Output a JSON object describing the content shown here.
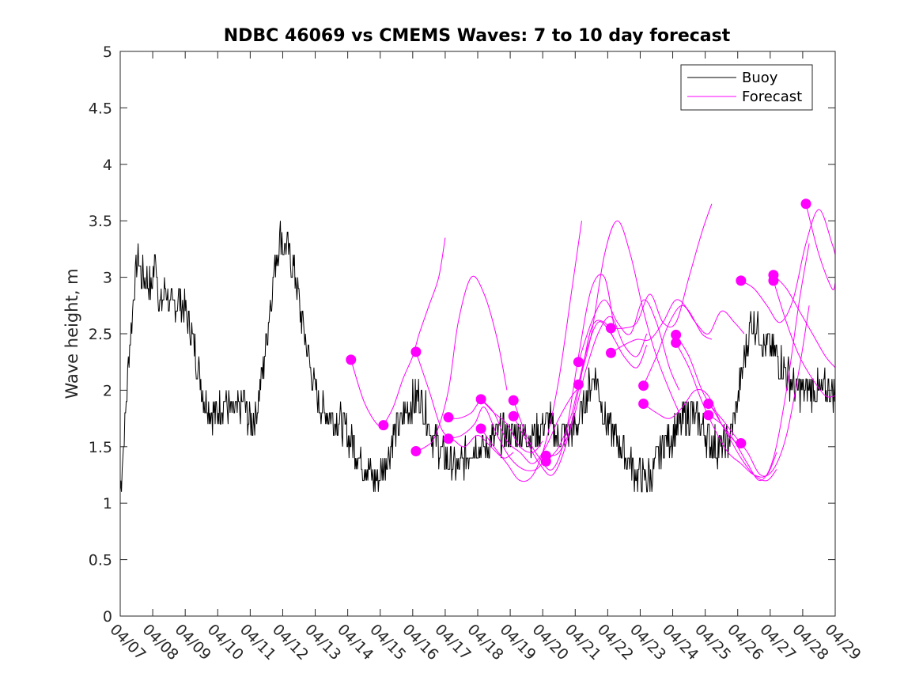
{
  "chart_data": {
    "type": "line",
    "title": "NDBC 46069 vs CMEMS Waves: 7 to 10 day forecast",
    "xlabel": "",
    "ylabel": "Wave height, m",
    "xlim": [
      "2024-04-07",
      "2024-04-29"
    ],
    "ylim": [
      0,
      5
    ],
    "yticks": [
      "0",
      "0.5",
      "1",
      "1.5",
      "2",
      "2.5",
      "3",
      "3.5",
      "4",
      "4.5",
      "5"
    ],
    "xticks": [
      "04/07",
      "04/08",
      "04/09",
      "04/10",
      "04/11",
      "04/12",
      "04/13",
      "04/14",
      "04/15",
      "04/16",
      "04/17",
      "04/18",
      "04/19",
      "04/20",
      "04/21",
      "04/22",
      "04/23",
      "04/24",
      "04/25",
      "04/26",
      "04/27",
      "04/28",
      "04/29"
    ],
    "grid": false,
    "legend": {
      "position": "top-right",
      "entries": [
        "Buoy",
        "Forecast"
      ]
    },
    "colors": {
      "buoy": "#000000",
      "forecast": "#ff00ff"
    },
    "series": [
      {
        "name": "Buoy",
        "x_days_from_0407": [
          0,
          0.1,
          0.25,
          0.4,
          0.55,
          0.65,
          0.8,
          0.95,
          1.1,
          1.2,
          1.4,
          1.55,
          1.8,
          2.0,
          2.2,
          2.4,
          2.6,
          2.8,
          3.0,
          3.2,
          3.4,
          3.6,
          3.8,
          4.0,
          4.2,
          4.4,
          4.6,
          4.8,
          4.95,
          5.0,
          5.2,
          5.4,
          5.6,
          5.8,
          6.0,
          6.2,
          6.4,
          6.6,
          6.8,
          7.0,
          7.2,
          7.4,
          7.6,
          7.8,
          8.0,
          8.2,
          8.4,
          8.6,
          8.8,
          9.0,
          9.2,
          9.4,
          9.6,
          9.8,
          10.0,
          10.2,
          10.4,
          10.6,
          10.8,
          11.0,
          11.2,
          11.4,
          11.6,
          11.8,
          12.0,
          12.2,
          12.4,
          12.6,
          12.8,
          13.0,
          13.2,
          13.4,
          13.6,
          13.8,
          14.0,
          14.2,
          14.4,
          14.6,
          14.8,
          15.0,
          15.2,
          15.4,
          15.6,
          15.8,
          16.0,
          16.2,
          16.4,
          16.6,
          16.8,
          17.0,
          17.2,
          17.4,
          17.6,
          17.8,
          18.0,
          18.2,
          18.4,
          18.6,
          18.8,
          19.0,
          19.2,
          19.4,
          19.6,
          19.8,
          20.0,
          20.2,
          20.4,
          20.6,
          20.8,
          21.0,
          21.2,
          21.4,
          21.6,
          21.8,
          22.0
        ],
        "values": [
          1.1,
          1.5,
          2.2,
          2.8,
          3.2,
          3.0,
          3.0,
          2.9,
          3.2,
          2.7,
          2.9,
          2.7,
          2.8,
          2.7,
          2.5,
          2.2,
          1.9,
          1.8,
          1.8,
          1.9,
          1.8,
          1.8,
          1.9,
          1.7,
          1.8,
          2.2,
          2.7,
          3.2,
          3.4,
          3.3,
          3.2,
          3.0,
          2.6,
          2.3,
          2.0,
          1.8,
          1.8,
          1.75,
          1.7,
          1.6,
          1.5,
          1.4,
          1.3,
          1.2,
          1.25,
          1.4,
          1.6,
          1.7,
          1.8,
          1.9,
          1.95,
          1.8,
          1.6,
          1.5,
          1.4,
          1.35,
          1.3,
          1.4,
          1.5,
          1.5,
          1.5,
          1.55,
          1.6,
          1.6,
          1.6,
          1.65,
          1.6,
          1.6,
          1.6,
          1.7,
          1.75,
          1.6,
          1.6,
          1.6,
          1.7,
          1.8,
          2.0,
          2.15,
          1.9,
          1.7,
          1.6,
          1.5,
          1.4,
          1.3,
          1.25,
          1.2,
          1.3,
          1.45,
          1.55,
          1.6,
          1.7,
          1.75,
          1.8,
          1.7,
          1.6,
          1.55,
          1.5,
          1.5,
          1.6,
          1.9,
          2.3,
          2.6,
          2.6,
          2.4,
          2.4,
          2.3,
          2.2,
          2.1,
          2.0,
          2.0,
          2.0,
          2.0,
          2.0,
          2.0,
          2.0
        ]
      },
      {
        "name": "Forecast",
        "runs": [
          {
            "x": [
              7.1,
              7.5,
              7.9,
              8.1
            ],
            "values": [
              2.27,
              1.9,
              1.7,
              1.7
            ]
          },
          {
            "x": [
              8.1,
              8.4,
              8.7,
              9.0,
              9.2,
              9.5,
              9.8,
              10.0
            ],
            "values": [
              1.69,
              1.85,
              2.1,
              2.3,
              2.5,
              2.75,
              3.0,
              3.35
            ]
          },
          {
            "x": [
              9.1,
              9.4,
              9.7,
              10.1,
              10.4,
              10.8,
              11.2,
              11.6,
              11.9
            ],
            "values": [
              1.46,
              1.5,
              1.6,
              2.0,
              2.6,
              3.0,
              2.85,
              2.45,
              2.0
            ]
          },
          {
            "x": [
              9.1,
              9.5,
              9.9,
              10.3,
              10.6,
              11.0,
              11.4,
              11.8,
              12.1
            ],
            "values": [
              2.34,
              2.0,
              1.65,
              1.55,
              1.5,
              1.6,
              1.5,
              1.4,
              1.45
            ]
          },
          {
            "x": [
              10.1,
              10.4,
              10.8,
              11.1,
              11.5,
              11.9,
              12.3,
              12.7,
              13.0
            ],
            "values": [
              1.76,
              1.75,
              1.8,
              1.9,
              1.8,
              1.7,
              1.5,
              1.45,
              1.55
            ]
          },
          {
            "x": [
              10.1,
              10.5,
              10.9,
              11.2,
              11.6,
              12.0,
              12.4,
              12.8,
              13.1
            ],
            "values": [
              1.57,
              1.6,
              1.7,
              1.85,
              1.6,
              1.4,
              1.3,
              1.3,
              1.4
            ]
          },
          {
            "x": [
              11.1,
              11.5,
              11.9,
              12.3,
              12.7,
              13.1,
              13.5,
              13.9,
              14.2
            ],
            "values": [
              1.92,
              1.8,
              1.55,
              1.45,
              1.35,
              1.5,
              1.75,
              1.95,
              2.05
            ]
          },
          {
            "x": [
              11.1,
              11.5,
              11.9,
              12.3,
              12.7,
              13.1,
              13.5,
              13.9,
              14.2
            ],
            "values": [
              1.66,
              1.5,
              1.35,
              1.2,
              1.25,
              1.55,
              2.1,
              2.9,
              3.5
            ]
          },
          {
            "x": [
              12.1,
              12.5,
              12.9,
              13.3,
              13.7,
              14.1,
              14.5,
              14.9,
              15.2
            ],
            "values": [
              1.91,
              1.6,
              1.4,
              1.3,
              1.6,
              2.3,
              2.9,
              3.0,
              2.55
            ]
          },
          {
            "x": [
              12.1,
              12.5,
              12.9,
              13.3,
              13.7,
              14.1,
              14.5,
              14.9,
              15.2
            ],
            "values": [
              1.77,
              1.55,
              1.35,
              1.25,
              1.5,
              2.0,
              2.55,
              2.6,
              2.45
            ]
          },
          {
            "x": [
              13.1,
              13.5,
              13.9,
              14.3,
              14.7,
              15.1,
              15.5,
              15.9,
              16.2
            ],
            "values": [
              1.42,
              1.45,
              1.7,
              2.15,
              2.5,
              2.65,
              2.4,
              2.3,
              2.5
            ]
          },
          {
            "x": [
              13.1,
              13.5,
              13.9,
              14.3,
              14.7,
              15.1,
              15.5,
              15.9,
              16.2
            ],
            "values": [
              1.37,
              1.5,
              1.8,
              2.3,
              2.6,
              2.5,
              2.3,
              2.2,
              2.4
            ]
          },
          {
            "x": [
              14.1,
              14.5,
              14.9,
              15.3,
              15.7,
              16.1,
              16.5,
              16.9,
              17.2
            ],
            "values": [
              2.25,
              2.6,
              2.8,
              2.6,
              2.5,
              2.8,
              2.6,
              2.2,
              2.0
            ]
          },
          {
            "x": [
              14.1,
              14.5,
              14.9,
              15.3,
              15.7,
              16.1,
              16.5,
              16.9,
              17.2
            ],
            "values": [
              2.05,
              2.5,
              3.2,
              3.5,
              3.2,
              2.7,
              2.3,
              2.0,
              1.8
            ]
          },
          {
            "x": [
              15.1,
              15.5,
              15.9,
              16.3,
              16.7,
              17.1,
              17.5,
              17.9,
              18.2
            ],
            "values": [
              2.55,
              2.55,
              2.6,
              2.85,
              2.6,
              2.6,
              3.0,
              3.4,
              3.65
            ]
          },
          {
            "x": [
              15.1,
              15.5,
              15.9,
              16.3,
              16.7,
              17.1,
              17.5,
              17.9,
              18.2
            ],
            "values": [
              2.33,
              2.4,
              2.45,
              2.45,
              2.6,
              2.8,
              2.7,
              2.5,
              2.45
            ]
          },
          {
            "x": [
              16.1,
              16.5,
              16.9,
              17.3,
              17.7,
              18.1,
              18.5,
              18.9,
              19.2
            ],
            "values": [
              2.04,
              2.3,
              2.6,
              2.75,
              2.6,
              2.5,
              2.7,
              2.6,
              2.5
            ]
          },
          {
            "x": [
              16.1,
              16.5,
              16.9,
              17.3,
              17.7,
              18.1,
              18.5,
              18.9,
              19.2
            ],
            "values": [
              1.88,
              1.8,
              1.75,
              1.85,
              2.0,
              1.95,
              1.7,
              1.55,
              1.5
            ]
          },
          {
            "x": [
              17.1,
              17.5,
              17.9,
              18.3,
              18.7,
              19.1,
              19.5,
              19.9,
              20.2
            ],
            "values": [
              2.49,
              2.3,
              2.0,
              1.8,
              1.6,
              1.4,
              1.25,
              1.2,
              1.3
            ]
          },
          {
            "x": [
              17.1,
              17.5,
              17.9,
              18.3,
              18.7,
              19.1,
              19.5,
              19.9,
              20.2
            ],
            "values": [
              2.42,
              2.2,
              1.9,
              1.65,
              1.45,
              1.35,
              1.25,
              1.25,
              1.45
            ]
          },
          {
            "x": [
              18.1,
              18.5,
              18.9,
              19.3,
              19.7,
              20.1,
              20.5,
              20.9,
              21.2
            ],
            "values": [
              1.88,
              1.75,
              1.6,
              1.45,
              1.25,
              1.3,
              1.6,
              2.2,
              2.75
            ]
          },
          {
            "x": [
              18.1,
              18.5,
              18.9,
              19.3,
              19.7,
              20.1,
              20.5,
              20.9,
              21.2
            ],
            "values": [
              1.78,
              1.7,
              1.55,
              1.35,
              1.2,
              1.4,
              2.0,
              2.8,
              3.3
            ]
          },
          {
            "x": [
              19.1,
              19.5,
              19.9,
              20.3,
              20.7,
              21.1,
              21.5,
              21.9,
              22.0
            ],
            "values": [
              2.97,
              2.9,
              2.75,
              2.6,
              2.8,
              3.3,
              3.6,
              3.3,
              3.2
            ]
          },
          {
            "x": [
              20.1,
              20.5,
              20.9,
              21.3,
              21.7,
              22.0
            ],
            "values": [
              3.02,
              2.9,
              2.7,
              2.5,
              2.3,
              2.2
            ]
          },
          {
            "x": [
              20.1,
              20.5,
              20.9,
              21.3,
              21.7,
              22.0
            ],
            "values": [
              2.97,
              2.6,
              2.3,
              2.1,
              1.95,
              1.95
            ]
          },
          {
            "x": [
              21.1,
              21.5,
              21.9,
              22.0
            ],
            "values": [
              3.65,
              3.2,
              2.9,
              2.95
            ]
          }
        ],
        "markers": {
          "x": [
            7.1,
            8.1,
            9.1,
            9.1,
            10.1,
            10.1,
            11.1,
            11.1,
            12.1,
            12.1,
            13.1,
            13.1,
            14.1,
            14.1,
            15.1,
            15.1,
            16.1,
            16.1,
            17.1,
            17.1,
            18.1,
            18.1,
            19.1,
            19.1,
            20.1,
            20.1,
            21.1
          ],
          "values": [
            2.27,
            1.69,
            2.34,
            1.46,
            1.76,
            1.57,
            1.92,
            1.66,
            1.91,
            1.77,
            1.42,
            1.37,
            2.25,
            2.05,
            2.55,
            2.33,
            2.04,
            1.88,
            2.49,
            2.42,
            1.88,
            1.78,
            2.97,
            1.53,
            3.02,
            2.97,
            3.65
          ]
        }
      }
    ]
  }
}
